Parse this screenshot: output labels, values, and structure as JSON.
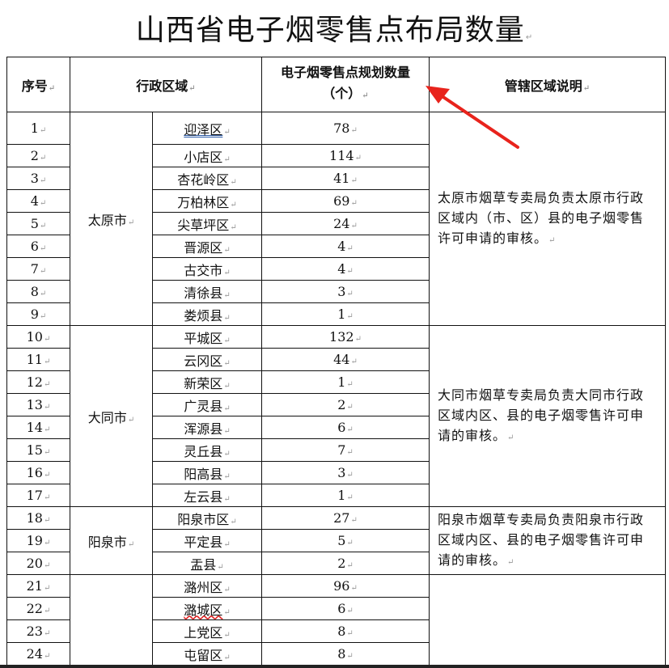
{
  "document": {
    "title": "山西省电子烟零售点布局数量",
    "paragraph_mark": "↵",
    "table": {
      "headers": {
        "no": "序号",
        "region": "行政区域",
        "count": "电子烟零售点规划数量（个）",
        "desc": "管辖区域说明"
      },
      "groups": [
        {
          "city": "太原市",
          "desc": "太原市烟草专卖局负责太原市行政区域内（市、区）县的电子烟零售许可申请的审核。",
          "rows": [
            {
              "no": "1",
              "district": "迎泽区",
              "count": "78"
            },
            {
              "no": "2",
              "district": "小店区",
              "count": "114"
            },
            {
              "no": "3",
              "district": "杏花岭区",
              "count": "41"
            },
            {
              "no": "4",
              "district": "万柏林区",
              "count": "69"
            },
            {
              "no": "5",
              "district": "尖草坪区",
              "count": "24"
            },
            {
              "no": "6",
              "district": "晋源区",
              "count": "4"
            },
            {
              "no": "7",
              "district": "古交市",
              "count": "4"
            },
            {
              "no": "8",
              "district": "清徐县",
              "count": "3"
            },
            {
              "no": "9",
              "district": "娄烦县",
              "count": "1"
            }
          ]
        },
        {
          "city": "大同市",
          "desc": "大同市烟草专卖局负责大同市行政区域内区、县的电子烟零售许可申请的审核。",
          "rows": [
            {
              "no": "10",
              "district": "平城区",
              "count": "132"
            },
            {
              "no": "11",
              "district": "云冈区",
              "count": "44"
            },
            {
              "no": "12",
              "district": "新荣区",
              "count": "1"
            },
            {
              "no": "13",
              "district": "广灵县",
              "count": "2"
            },
            {
              "no": "14",
              "district": "浑源县",
              "count": "6"
            },
            {
              "no": "15",
              "district": "灵丘县",
              "count": "7"
            },
            {
              "no": "16",
              "district": "阳高县",
              "count": "3"
            },
            {
              "no": "17",
              "district": "左云县",
              "count": "1"
            }
          ]
        },
        {
          "city": "阳泉市",
          "desc": "阳泉市烟草专卖局负责阳泉市行政区域内区、县的电子烟零售许可申请的审核。",
          "rows": [
            {
              "no": "18",
              "district": "阳泉市区",
              "count": "27"
            },
            {
              "no": "19",
              "district": "平定县",
              "count": "5"
            },
            {
              "no": "20",
              "district": "盂县",
              "count": "2"
            }
          ]
        },
        {
          "city": "",
          "desc": "",
          "rows": [
            {
              "no": "21",
              "district": "潞州区",
              "count": "96"
            },
            {
              "no": "22",
              "district": "潞城区",
              "count": "6"
            },
            {
              "no": "23",
              "district": "上党区",
              "count": "8"
            },
            {
              "no": "24",
              "district": "屯留区",
              "count": "8"
            }
          ]
        }
      ]
    },
    "annotation": {
      "type": "red-arrow",
      "color": "#e8231c"
    }
  }
}
